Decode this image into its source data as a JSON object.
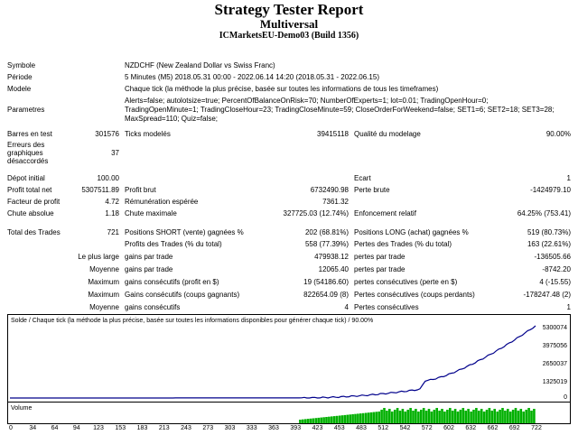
{
  "header": {
    "title": "Strategy Tester Report",
    "subtitle": "Multiversal",
    "server": "ICMarketsEU-Demo03 (Build 1356)"
  },
  "info": {
    "symbol_label": "Symbole",
    "symbol_value": "NZDCHF (New Zealand Dollar vs Swiss Franc)",
    "period_label": "Période",
    "period_value": "5 Minutes (M5) 2018.05.31 00:00 - 2022.06.14 14:20 (2018.05.31 - 2022.06.15)",
    "model_label": "Modele",
    "model_value": "Chaque tick (la méthode la plus précise, basée sur toutes les informations de tous les timeframes)",
    "params_label": "Parametres",
    "params_line1": "Alerts=false; autolotsize=true; PercentOfBalanceOnRisk=70; NumberOfExperts=1; lot=0.01; TradingOpenHour=0;",
    "params_line2": "TradingOpenMinute=1; TradingCloseHour=23; TradingCloseMinute=59; CloseOrderForWeekend=false; SET1=6; SET2=18; SET3=28;",
    "params_line3": "MaxSpread=110; Quiz=false;"
  },
  "stats": {
    "bars_label": "Barres en test",
    "bars_value": "301576",
    "ticks_label": "Ticks modelés",
    "ticks_value": "39415118",
    "quality_label": "Qualité du modelage",
    "quality_value": "90.00%",
    "errors_label1": "Erreurs des",
    "errors_label2": "graphiques",
    "errors_label3": "désaccordés",
    "errors_value": "37",
    "deposit_label": "Dépot initial",
    "deposit_value": "100.00",
    "spread_label": "Ecart",
    "spread_value": "1",
    "netprofit_label": "Profit total net",
    "netprofit_value": "5307511.89",
    "grossprofit_label": "Profit brut",
    "grossprofit_value": "6732490.98",
    "grossloss_label": "Perte brute",
    "grossloss_value": "-1424979.10",
    "pf_label": "Facteur de profit",
    "pf_value": "4.72",
    "expected_label": "Rémunération espérée",
    "expected_value": "7361.32",
    "absdd_label": "Chute absolue",
    "absdd_value": "1.18",
    "maxdd_label": "Chute maximale",
    "maxdd_value": "327725.03 (12.74%)",
    "reldd_label": "Enfoncement relatif",
    "reldd_value": "64.25% (753.41)",
    "trades_label": "Total des Trades",
    "trades_value": "721",
    "short_label": "Positions SHORT (vente) gagnées %",
    "short_value": "202 (68.81%)",
    "long_label": "Positions LONG (achat) gagnées %",
    "long_value": "519 (80.73%)",
    "profit_trades_label": "Profits des Trades (% du total)",
    "profit_trades_value": "558 (77.39%)",
    "loss_trades_label": "Pertes des Trades (% du total)",
    "loss_trades_value": "163 (22.61%)",
    "largest_label": "Le plus large",
    "largest_profit_label": "gains par trade",
    "largest_profit_value": "479938.12",
    "largest_loss_label": "pertes par trade",
    "largest_loss_value": "-136505.66",
    "average_label": "Moyenne",
    "average_profit_label": "gains par trade",
    "average_profit_value": "12065.40",
    "average_loss_label": "pertes par trade",
    "average_loss_value": "-8742.20",
    "maximum_label": "Maximum",
    "max_consec_wins_label": "gains consécutifs (profit en $)",
    "max_consec_wins_value": "19 (54186.60)",
    "max_consec_losses_label": "pertes consécutives (perte en $)",
    "max_consec_losses_value": "4 (-15.55)",
    "maximal_label": "Maximum",
    "maximal_profit_label": "Gains consécutifs (coups gagnants)",
    "maximal_profit_value": "822654.09 (8)",
    "maximal_loss_label": "Pertes consécutives (coups perdants)",
    "maximal_loss_value": "-178247.48 (2)",
    "avg_consec_label": "Moyenne",
    "avg_consec_wins_label": "gains consécutifs",
    "avg_consec_wins_value": "4",
    "avg_consec_losses_label": "Pertes consécutives",
    "avg_consec_losses_value": "1"
  },
  "chart": {
    "caption": "Solde / Chaque tick (la méthode la plus précise, basée sur toutes les informations disponibles pour générer chaque tick) / 90.00%",
    "volume_label": "Volume",
    "balance_color": "#00008b",
    "volume_color": "#00b000",
    "y_ticks": [
      "5300074",
      "3975056",
      "2650037",
      "1325019",
      "0"
    ],
    "x_ticks": [
      "0",
      "34",
      "64",
      "94",
      "123",
      "153",
      "183",
      "213",
      "243",
      "273",
      "303",
      "333",
      "363",
      "393",
      "423",
      "453",
      "483",
      "512",
      "542",
      "572",
      "602",
      "632",
      "662",
      "692",
      "722"
    ]
  }
}
